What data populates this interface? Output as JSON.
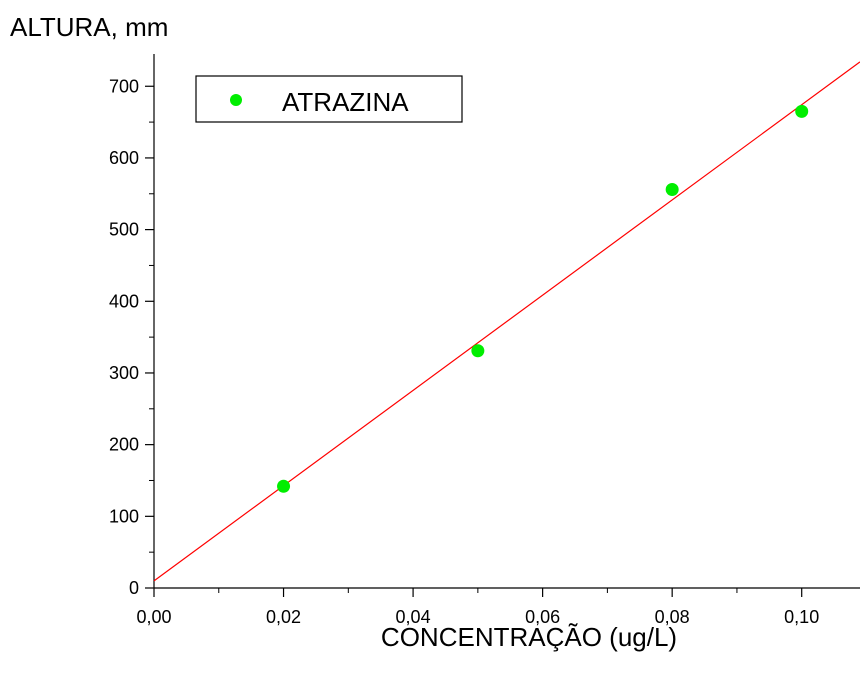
{
  "chart_data": {
    "type": "scatter",
    "title": "",
    "xlabel": "CONCENTRAÇÃO (ug/L)",
    "ylabel": "ALTURA, mm",
    "xlim": [
      0,
      0.109
    ],
    "ylim": [
      0,
      745
    ],
    "x_ticks": [
      0,
      0.02,
      0.04,
      0.06,
      0.08,
      0.1
    ],
    "x_tick_labels": [
      "0,00",
      "0,02",
      "0,04",
      "0,06",
      "0,08",
      "0,10"
    ],
    "y_ticks": [
      0,
      100,
      200,
      300,
      400,
      500,
      600,
      700
    ],
    "y_tick_labels": [
      "0",
      "100",
      "200",
      "300",
      "400",
      "500",
      "600",
      "700"
    ],
    "grid": false,
    "legend_position": "top-left",
    "series": [
      {
        "name": "ATRAZINA",
        "kind": "points",
        "color": "#00ee00",
        "x": [
          0.02,
          0.05,
          0.08,
          0.1
        ],
        "y": [
          142,
          331,
          556,
          665
        ]
      },
      {
        "kind": "line",
        "color": "#ff0000",
        "x": [
          0,
          0.109
        ],
        "y": [
          10,
          734
        ]
      }
    ]
  }
}
